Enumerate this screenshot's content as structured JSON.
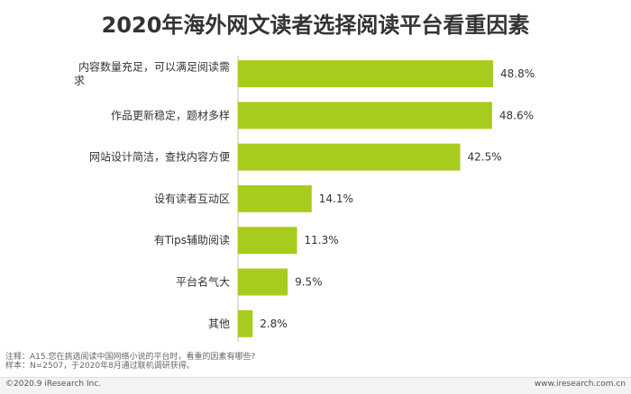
{
  "title": "2020年海外网文读者选择阅读平台看重因素",
  "chart_data": {
    "type": "bar",
    "orientation": "horizontal",
    "categories": [
      [
        "内容数量充足，可以满足阅读需",
        "求"
      ],
      [
        "作品更新稳定，题材多样"
      ],
      [
        "网站设计简洁，查找内容方便"
      ],
      [
        "设有读者互动区"
      ],
      [
        "有Tips辅助阅读"
      ],
      [
        "平台名气大"
      ],
      [
        "其他"
      ]
    ],
    "values": [
      48.8,
      48.6,
      42.5,
      14.1,
      11.3,
      9.5,
      2.8
    ],
    "value_labels": [
      "48.8%",
      "48.6%",
      "42.5%",
      "14.1%",
      "11.3%",
      "9.5%",
      "2.8%"
    ],
    "xlim": [
      0,
      50
    ],
    "grid": false,
    "bar_color": "#a8cc1e"
  },
  "notes": {
    "line1": "注释：A15.您在挑选阅读中国网络小说的平台时，看重的因素有哪些?",
    "line2": "样本：N=2507，于2020年8月通过联机调研获得。"
  },
  "footer": {
    "left": "©2020.9 iResearch Inc.",
    "right": "www.iresearch.com.cn"
  }
}
